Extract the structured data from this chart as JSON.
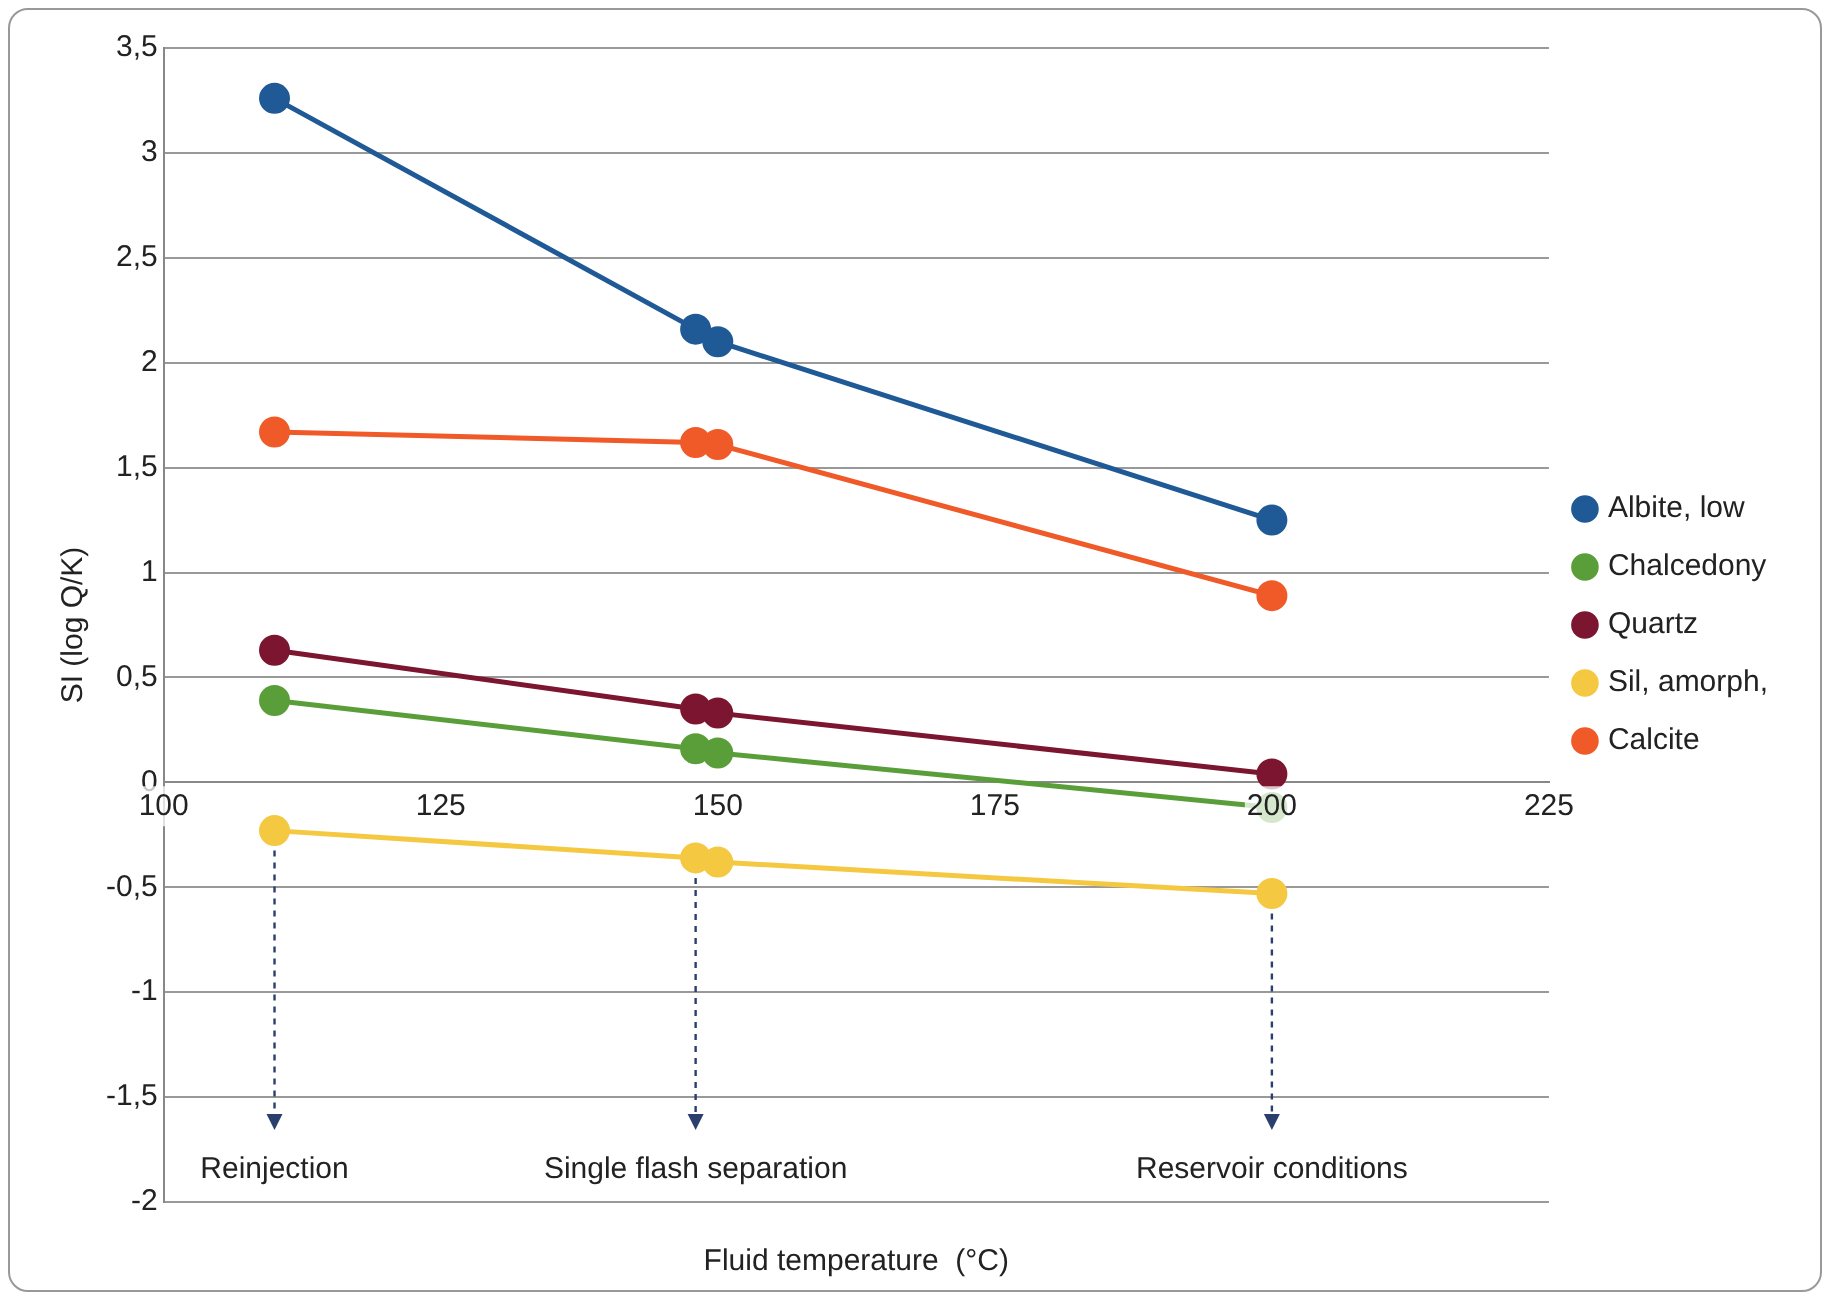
{
  "chart_data": {
    "type": "line",
    "xlabel": "Fluid temperature  (°C)",
    "ylabel": "SI (log Q/K)",
    "x": [
      110,
      148,
      150,
      200
    ],
    "series": [
      {
        "name": "Albite, low",
        "color": "#1f5a96",
        "values": [
          3.26,
          2.16,
          2.1,
          1.25
        ]
      },
      {
        "name": "Chalcedony",
        "color": "#5a9e3a",
        "values": [
          0.39,
          0.16,
          0.14,
          -0.12
        ]
      },
      {
        "name": "Quartz",
        "color": "#7b1530",
        "values": [
          0.63,
          0.35,
          0.33,
          0.04
        ]
      },
      {
        "name": "Sil, amorph,",
        "color": "#f5c842",
        "values": [
          -0.23,
          -0.36,
          -0.38,
          -0.53
        ]
      },
      {
        "name": "Calcite",
        "color": "#f05a28",
        "values": [
          1.67,
          1.62,
          1.61,
          0.89
        ]
      }
    ],
    "xlim": [
      100,
      225
    ],
    "xticks": [
      100,
      125,
      150,
      175,
      200,
      225
    ],
    "ylim": [
      -2,
      3.5
    ],
    "yticks": [
      -2,
      {
        "value": -1.5,
        "label": "-1,5"
      },
      -1,
      {
        "value": -0.5,
        "label": "-0,5"
      },
      0,
      {
        "value": 0.5,
        "label": "0,5"
      },
      1,
      {
        "value": 1.5,
        "label": "1,5"
      },
      2,
      {
        "value": 2.5,
        "label": "2,5"
      },
      3,
      {
        "value": 3.5,
        "label": "3,5"
      }
    ],
    "annotations": [
      "Reinjection",
      "Single flash separation",
      "Reservoir conditions"
    ],
    "grid": "y",
    "legend": "right",
    "marker": "circle",
    "line_style": "solid"
  }
}
